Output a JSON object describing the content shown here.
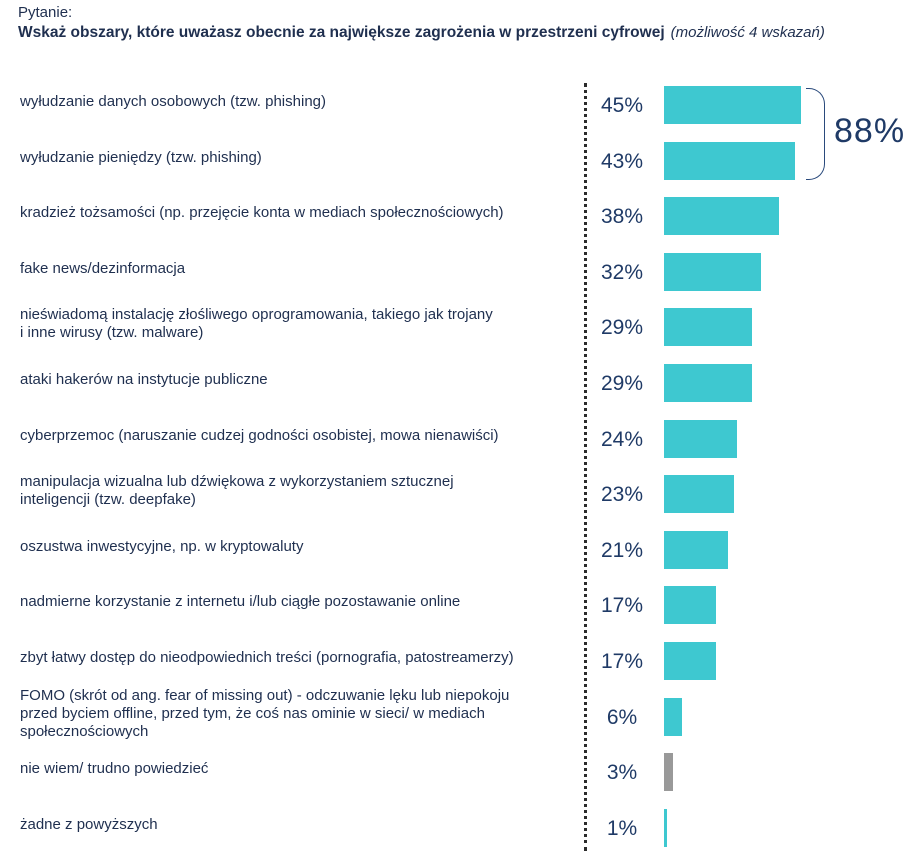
{
  "header": {
    "question_label": "Pytanie:",
    "question_text": "Wskaż obszary, które uważasz obecnie za największe zagrożenia w przestrzeni cyfrowej",
    "question_hint": "(możliwość 4 wskazań)"
  },
  "summary": {
    "value": "88%"
  },
  "colors": {
    "bar": "#3ec8d0",
    "neutral_bar": "#999999",
    "text": "#1f2f4f",
    "value": "#1f3a66"
  },
  "chart_data": {
    "type": "bar",
    "orientation": "horizontal",
    "title": "Wskaż obszary, które uważasz obecnie za największe zagrożenia w przestrzeni cyfrowej",
    "xlim": [
      0,
      100
    ],
    "unit": "%",
    "categories": [
      "wyłudzanie danych osobowych (tzw. phishing)",
      "wyłudzanie pieniędzy (tzw. phishing)",
      "kradzież tożsamości (np. przejęcie konta w mediach społecznościowych)",
      "fake news/dezinformacja",
      "nieświadomą instalację złośliwego oprogramowania, takiego jak trojany\ni inne wirusy (tzw. malware)",
      "ataki hakerów na instytucje publiczne",
      "cyberprzemoc (naruszanie cudzej godności osobistej, mowa nienawiści)",
      "manipulacja wizualna lub dźwiękowa z wykorzystaniem sztucznej\ninteligencji (tzw. deepfake)",
      "oszustwa inwestycyjne, np. w kryptowaluty",
      "nadmierne korzystanie z internetu i/lub ciągłe pozostawanie online",
      "zbyt łatwy dostęp do nieodpowiednich treści (pornografia, patostreamerzy)",
      "FOMO (skrót od ang. fear of missing out) - odczuwanie lęku lub niepokoju\nprzed byciem offline, przed tym, że coś nas ominie w sieci/ w mediach\nspołecznościowych",
      "nie wiem/ trudno powiedzieć",
      "żadne z powyższych"
    ],
    "values": [
      45,
      43,
      38,
      32,
      29,
      29,
      24,
      23,
      21,
      17,
      17,
      6,
      3,
      1
    ],
    "value_labels": [
      "45%",
      "43%",
      "38%",
      "32%",
      "29%",
      "29%",
      "24%",
      "23%",
      "21%",
      "17%",
      "17%",
      "6%",
      "3%",
      "1%"
    ],
    "neutral_categories": [
      "nie wiem/ trudno powiedzieć"
    ],
    "annotations": [
      {
        "text": "88%",
        "groups": [
          "wyłudzanie danych osobowych (tzw. phishing)",
          "wyłudzanie pieniędzy (tzw. phishing)"
        ]
      }
    ]
  }
}
